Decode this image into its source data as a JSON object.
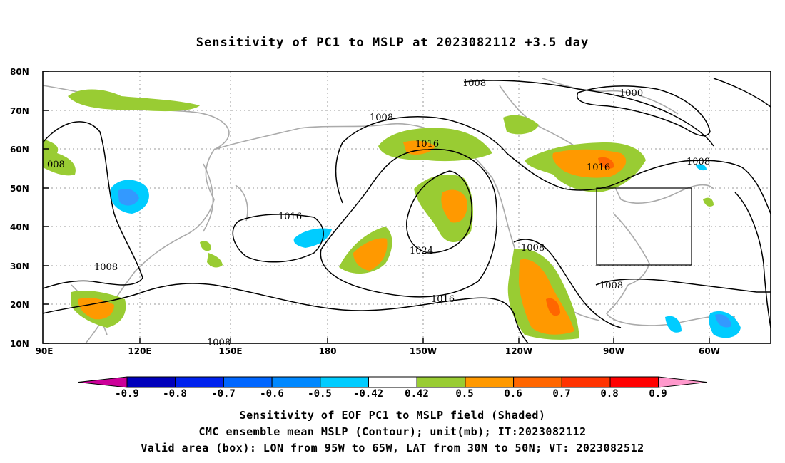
{
  "title": "Sensitivity of PC1 to MSLP at 2023082112 +3.5 day",
  "map": {
    "lat_labels": [
      "80N",
      "70N",
      "60N",
      "50N",
      "40N",
      "30N",
      "20N",
      "10N"
    ],
    "lon_labels": [
      "90E",
      "120E",
      "150E",
      "180",
      "150W",
      "120W",
      "90W",
      "60W"
    ],
    "contour_labels": [
      "1008",
      "1000",
      "1008",
      "1016",
      "1016",
      "1016",
      "1024",
      "1016",
      "1008",
      "1008",
      "1008",
      "008",
      "1008",
      "1008"
    ],
    "validation_box": {
      "lon_from": "95W",
      "lon_to": "65W",
      "lat_from": "30N",
      "lat_to": "50N"
    },
    "colors": {
      "positive_low": "#99cc33",
      "positive_mid": "#ff9900",
      "positive_high": "#ff6600",
      "negative_low": "#00ccff",
      "negative_mid": "#3399ff",
      "coast": "#aaaaaa"
    }
  },
  "colorbar": {
    "labels": [
      "-0.9",
      "-0.8",
      "-0.7",
      "-0.6",
      "-0.5",
      "-0.42",
      "0.42",
      "0.5",
      "0.6",
      "0.7",
      "0.8",
      "0.9"
    ],
    "colors": [
      "#cc0099",
      "#0000bb",
      "#0022ee",
      "#0066ff",
      "#0088ff",
      "#00ccff",
      "#ffffff",
      "#99cc33",
      "#ff9900",
      "#ff6600",
      "#ff3300",
      "#ff0000",
      "#ff99cc"
    ]
  },
  "footer": {
    "line1": "Sensitivity of EOF PC1 to MSLP field (Shaded)",
    "line2": "CMC ensemble mean MSLP (Contour); unit(mb); IT:2023082112",
    "line3": "Valid area (box): LON from 95W to 65W, LAT from 30N to 50N; VT: 2023082512"
  }
}
